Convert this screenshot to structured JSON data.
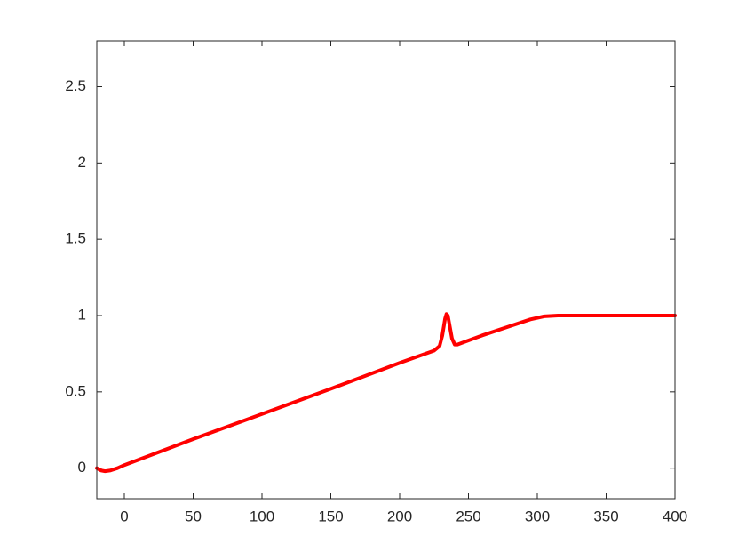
{
  "chart_data": {
    "type": "line",
    "x": [
      -20,
      -17,
      -14,
      -10,
      -5,
      0,
      50,
      100,
      150,
      200,
      225,
      229,
      231,
      233,
      234,
      235,
      236,
      238,
      240,
      242,
      245,
      260,
      280,
      295,
      305,
      315,
      400
    ],
    "values": [
      0,
      -0.015,
      -0.02,
      -0.015,
      0,
      0.02,
      0.19,
      0.355,
      0.52,
      0.69,
      0.77,
      0.8,
      0.87,
      0.98,
      1.01,
      1.0,
      0.95,
      0.85,
      0.81,
      0.81,
      0.82,
      0.87,
      0.93,
      0.975,
      0.995,
      1.0,
      1.0
    ],
    "color": "#ff0000",
    "xlim": [
      -20,
      400
    ],
    "xticks": [
      0,
      50,
      100,
      150,
      200,
      250,
      300,
      350,
      400
    ],
    "ylim": [
      -0.2,
      2.8
    ],
    "yticks": [
      0,
      0.5,
      1,
      1.5,
      2,
      2.5
    ],
    "grid": false
  }
}
